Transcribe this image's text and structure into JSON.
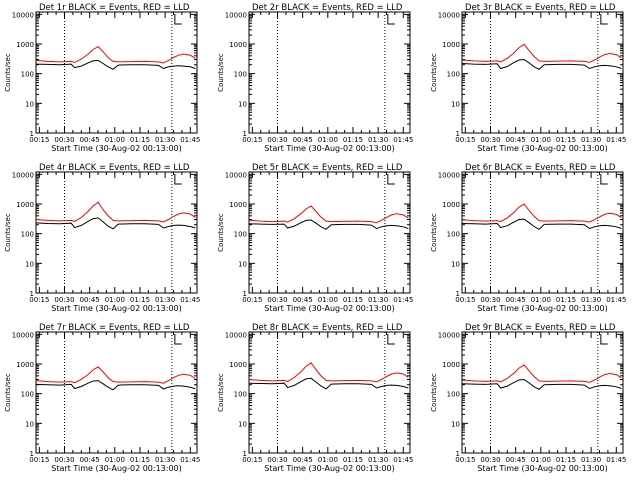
{
  "colors": {
    "events": "#000000",
    "lld": "#ff0000",
    "axis": "#000000"
  },
  "chart_data": [
    {
      "type": "line",
      "title": "Det 1r BLACK = Events, RED = LLD",
      "xlabel": "Start Time (30-Aug-02 00:13:00)",
      "ylabel": "Counts/sec",
      "yscale": "log",
      "ylim": [
        1,
        12000
      ],
      "yticks": [
        "1",
        "10",
        "100",
        "1000",
        "10000"
      ],
      "xlim": [
        13,
        109
      ],
      "xticks": [
        "00:15",
        "00:30",
        "00:45",
        "01:00",
        "01:15",
        "01:30",
        "01:45"
      ],
      "vlines": [
        30,
        94
      ],
      "series": [
        {
          "name": "Events",
          "x": [
            13,
            20,
            27,
            34,
            36,
            40,
            44,
            47,
            50,
            53,
            56,
            59,
            62,
            70,
            78,
            86,
            89,
            92,
            95,
            98,
            101,
            105,
            108
          ],
          "values": [
            210,
            205,
            200,
            210,
            160,
            180,
            230,
            270,
            280,
            220,
            170,
            140,
            195,
            200,
            200,
            190,
            150,
            170,
            180,
            185,
            180,
            170,
            150
          ]
        },
        {
          "name": "LLD",
          "x": [
            13,
            20,
            27,
            34,
            36,
            40,
            44,
            47,
            50,
            53,
            56,
            59,
            62,
            70,
            78,
            86,
            89,
            92,
            95,
            98,
            101,
            105,
            108
          ],
          "values": [
            280,
            260,
            250,
            260,
            240,
            310,
            450,
            650,
            820,
            550,
            350,
            260,
            250,
            255,
            260,
            250,
            230,
            280,
            350,
            420,
            460,
            420,
            330
          ]
        }
      ]
    },
    {
      "type": "line",
      "title": "Det 2r BLACK = Events, RED = LLD",
      "xlabel": "Start Time (30-Aug-02 00:13:00)",
      "ylabel": "Counts/sec",
      "yscale": "log",
      "ylim": [
        1,
        12000
      ],
      "yticks": [
        "1",
        "10",
        "100",
        "1000",
        "10000"
      ],
      "xlim": [
        13,
        109
      ],
      "xticks": [
        "00:15",
        "00:30",
        "00:45",
        "01:00",
        "01:15",
        "01:30",
        "01:45"
      ],
      "vlines": [
        30,
        94
      ],
      "series": []
    },
    {
      "type": "line",
      "title": "Det 3r BLACK = Events, RED = LLD",
      "xlabel": "Start Time (30-Aug-02 00:13:00)",
      "ylabel": "Counts/sec",
      "yscale": "log",
      "ylim": [
        1,
        12000
      ],
      "yticks": [
        "1",
        "10",
        "100",
        "1000",
        "10000"
      ],
      "xlim": [
        13,
        109
      ],
      "xticks": [
        "00:15",
        "00:30",
        "00:45",
        "01:00",
        "01:15",
        "01:30",
        "01:45"
      ],
      "vlines": [
        30,
        94
      ],
      "series": [
        {
          "name": "Events",
          "x": [
            13,
            20,
            27,
            34,
            36,
            40,
            44,
            47,
            50,
            53,
            56,
            59,
            62,
            70,
            78,
            86,
            89,
            92,
            95,
            98,
            101,
            105,
            108
          ],
          "values": [
            220,
            210,
            205,
            215,
            150,
            175,
            240,
            290,
            300,
            230,
            170,
            140,
            200,
            205,
            205,
            195,
            150,
            170,
            185,
            190,
            185,
            170,
            150
          ]
        },
        {
          "name": "LLD",
          "x": [
            13,
            20,
            27,
            34,
            36,
            40,
            44,
            47,
            50,
            53,
            56,
            59,
            62,
            70,
            78,
            86,
            89,
            92,
            95,
            98,
            101,
            105,
            108
          ],
          "values": [
            290,
            270,
            260,
            270,
            250,
            330,
            500,
            750,
            980,
            600,
            380,
            270,
            260,
            265,
            270,
            260,
            240,
            290,
            360,
            440,
            480,
            440,
            340
          ]
        }
      ]
    },
    {
      "type": "line",
      "title": "Det 4r BLACK = Events, RED = LLD",
      "xlabel": "Start Time (30-Aug-02 00:13:00)",
      "ylabel": "Counts/sec",
      "yscale": "log",
      "ylim": [
        1,
        12000
      ],
      "yticks": [
        "1",
        "10",
        "100",
        "1000",
        "10000"
      ],
      "xlim": [
        13,
        109
      ],
      "xticks": [
        "00:15",
        "00:30",
        "00:45",
        "01:00",
        "01:15",
        "01:30",
        "01:45"
      ],
      "vlines": [
        30,
        94
      ],
      "series": [
        {
          "name": "Events",
          "x": [
            13,
            20,
            27,
            34,
            36,
            40,
            44,
            47,
            50,
            53,
            56,
            59,
            62,
            70,
            78,
            86,
            89,
            92,
            95,
            98,
            101,
            105,
            108
          ],
          "values": [
            230,
            220,
            215,
            225,
            160,
            190,
            260,
            320,
            340,
            250,
            180,
            145,
            210,
            215,
            215,
            205,
            155,
            175,
            190,
            195,
            190,
            175,
            155
          ]
        },
        {
          "name": "LLD",
          "x": [
            13,
            20,
            27,
            34,
            36,
            40,
            44,
            47,
            50,
            53,
            56,
            59,
            62,
            70,
            78,
            86,
            89,
            92,
            95,
            98,
            101,
            105,
            108
          ],
          "values": [
            300,
            280,
            270,
            280,
            260,
            350,
            560,
            850,
            1150,
            650,
            400,
            280,
            270,
            275,
            280,
            270,
            250,
            300,
            380,
            460,
            500,
            460,
            350
          ]
        }
      ]
    },
    {
      "type": "line",
      "title": "Det 5r BLACK = Events, RED = LLD",
      "xlabel": "Start Time (30-Aug-02 00:13:00)",
      "ylabel": "Counts/sec",
      "yscale": "log",
      "ylim": [
        1,
        12000
      ],
      "yticks": [
        "1",
        "10",
        "100",
        "1000",
        "10000"
      ],
      "xlim": [
        13,
        109
      ],
      "xticks": [
        "00:15",
        "00:30",
        "00:45",
        "01:00",
        "01:15",
        "01:30",
        "01:45"
      ],
      "vlines": [
        30,
        94
      ],
      "series": [
        {
          "name": "Events",
          "x": [
            13,
            20,
            27,
            34,
            36,
            40,
            44,
            47,
            50,
            53,
            56,
            59,
            62,
            70,
            78,
            86,
            89,
            92,
            95,
            98,
            101,
            105,
            108
          ],
          "values": [
            215,
            210,
            205,
            210,
            155,
            180,
            235,
            280,
            290,
            225,
            170,
            140,
            200,
            205,
            205,
            195,
            150,
            170,
            185,
            190,
            185,
            170,
            150
          ]
        },
        {
          "name": "LLD",
          "x": [
            13,
            20,
            27,
            34,
            36,
            40,
            44,
            47,
            50,
            53,
            56,
            59,
            62,
            70,
            78,
            86,
            89,
            92,
            95,
            98,
            101,
            105,
            108
          ],
          "values": [
            285,
            265,
            255,
            265,
            245,
            320,
            470,
            680,
            860,
            560,
            360,
            265,
            255,
            260,
            265,
            255,
            235,
            285,
            355,
            430,
            470,
            430,
            335
          ]
        }
      ]
    },
    {
      "type": "line",
      "title": "Det 6r BLACK = Events, RED = LLD",
      "xlabel": "Start Time (30-Aug-02 00:13:00)",
      "ylabel": "Counts/sec",
      "yscale": "log",
      "ylim": [
        1,
        12000
      ],
      "yticks": [
        "1",
        "10",
        "100",
        "1000",
        "10000"
      ],
      "xlim": [
        13,
        109
      ],
      "xticks": [
        "00:15",
        "00:30",
        "00:45",
        "01:00",
        "01:15",
        "01:30",
        "01:45"
      ],
      "vlines": [
        30,
        94
      ],
      "series": [
        {
          "name": "Events",
          "x": [
            13,
            20,
            27,
            34,
            36,
            40,
            44,
            47,
            50,
            53,
            56,
            59,
            62,
            70,
            78,
            86,
            89,
            92,
            95,
            98,
            101,
            105,
            108
          ],
          "values": [
            220,
            215,
            210,
            220,
            160,
            185,
            245,
            300,
            310,
            235,
            175,
            140,
            205,
            210,
            210,
            200,
            150,
            170,
            185,
            190,
            185,
            170,
            150
          ]
        },
        {
          "name": "LLD",
          "x": [
            13,
            20,
            27,
            34,
            36,
            40,
            44,
            47,
            50,
            53,
            56,
            59,
            62,
            70,
            78,
            86,
            89,
            92,
            95,
            98,
            101,
            105,
            108
          ],
          "values": [
            295,
            275,
            265,
            275,
            255,
            340,
            520,
            780,
            1000,
            610,
            385,
            275,
            265,
            270,
            275,
            265,
            245,
            295,
            365,
            445,
            485,
            445,
            345
          ]
        }
      ]
    },
    {
      "type": "line",
      "title": "Det 7r BLACK = Events, RED = LLD",
      "xlabel": "Start Time (30-Aug-02 00:13:00)",
      "ylabel": "Counts/sec",
      "yscale": "log",
      "ylim": [
        1,
        12000
      ],
      "yticks": [
        "1",
        "10",
        "100",
        "1000",
        "10000"
      ],
      "xlim": [
        13,
        109
      ],
      "xticks": [
        "00:15",
        "00:30",
        "00:45",
        "01:00",
        "01:15",
        "01:30",
        "01:45"
      ],
      "vlines": [
        30,
        94
      ],
      "series": [
        {
          "name": "Events",
          "x": [
            13,
            20,
            27,
            34,
            36,
            40,
            44,
            47,
            50,
            53,
            56,
            59,
            62,
            70,
            78,
            86,
            89,
            92,
            95,
            98,
            101,
            105,
            108
          ],
          "values": [
            205,
            200,
            195,
            205,
            150,
            175,
            225,
            265,
            275,
            215,
            165,
            135,
            195,
            200,
            200,
            190,
            145,
            165,
            180,
            185,
            180,
            165,
            145
          ]
        },
        {
          "name": "LLD",
          "x": [
            13,
            20,
            27,
            34,
            36,
            40,
            44,
            47,
            50,
            53,
            56,
            59,
            62,
            70,
            78,
            86,
            89,
            92,
            95,
            98,
            101,
            105,
            108
          ],
          "values": [
            275,
            255,
            245,
            255,
            235,
            305,
            440,
            630,
            800,
            540,
            345,
            255,
            245,
            250,
            255,
            245,
            225,
            275,
            345,
            415,
            455,
            415,
            325
          ]
        }
      ]
    },
    {
      "type": "line",
      "title": "Det 8r BLACK = Events, RED = LLD",
      "xlabel": "Start Time (30-Aug-02 00:13:00)",
      "ylabel": "Counts/sec",
      "yscale": "log",
      "ylim": [
        1,
        12000
      ],
      "yticks": [
        "1",
        "10",
        "100",
        "1000",
        "10000"
      ],
      "xlim": [
        13,
        109
      ],
      "xticks": [
        "00:15",
        "00:30",
        "00:45",
        "01:00",
        "01:15",
        "01:30",
        "01:45"
      ],
      "vlines": [
        30,
        94
      ],
      "series": [
        {
          "name": "Events",
          "x": [
            13,
            20,
            27,
            34,
            36,
            40,
            44,
            47,
            50,
            53,
            56,
            59,
            62,
            70,
            78,
            86,
            89,
            92,
            95,
            98,
            101,
            105,
            108
          ],
          "values": [
            225,
            220,
            215,
            225,
            160,
            190,
            255,
            315,
            330,
            245,
            180,
            145,
            210,
            215,
            215,
            205,
            155,
            175,
            190,
            195,
            190,
            175,
            155
          ]
        },
        {
          "name": "LLD",
          "x": [
            13,
            20,
            27,
            34,
            36,
            40,
            44,
            47,
            50,
            53,
            56,
            59,
            62,
            70,
            78,
            86,
            89,
            92,
            95,
            98,
            101,
            105,
            108
          ],
          "values": [
            300,
            280,
            270,
            280,
            260,
            350,
            550,
            830,
            1100,
            640,
            395,
            280,
            270,
            275,
            280,
            270,
            250,
            300,
            380,
            460,
            500,
            460,
            350
          ]
        }
      ]
    },
    {
      "type": "line",
      "title": "Det 9r BLACK = Events, RED = LLD",
      "xlabel": "Start Time (30-Aug-02 00:13:00)",
      "ylabel": "Counts/sec",
      "yscale": "log",
      "ylim": [
        1,
        12000
      ],
      "yticks": [
        "1",
        "10",
        "100",
        "1000",
        "10000"
      ],
      "xlim": [
        13,
        109
      ],
      "xticks": [
        "00:15",
        "00:30",
        "00:45",
        "01:00",
        "01:15",
        "01:30",
        "01:45"
      ],
      "vlines": [
        30,
        94
      ],
      "series": [
        {
          "name": "Events",
          "x": [
            13,
            20,
            27,
            34,
            36,
            40,
            44,
            47,
            50,
            53,
            56,
            59,
            62,
            70,
            78,
            86,
            89,
            92,
            95,
            98,
            101,
            105,
            108
          ],
          "values": [
            215,
            210,
            205,
            215,
            155,
            180,
            240,
            290,
            300,
            230,
            170,
            140,
            200,
            205,
            205,
            195,
            150,
            170,
            185,
            190,
            185,
            170,
            150
          ]
        },
        {
          "name": "LLD",
          "x": [
            13,
            20,
            27,
            34,
            36,
            40,
            44,
            47,
            50,
            53,
            56,
            59,
            62,
            70,
            78,
            86,
            89,
            92,
            95,
            98,
            101,
            105,
            108
          ],
          "values": [
            290,
            270,
            260,
            270,
            250,
            330,
            490,
            730,
            930,
            590,
            375,
            270,
            260,
            265,
            270,
            260,
            240,
            290,
            360,
            440,
            480,
            440,
            340
          ]
        }
      ]
    }
  ]
}
